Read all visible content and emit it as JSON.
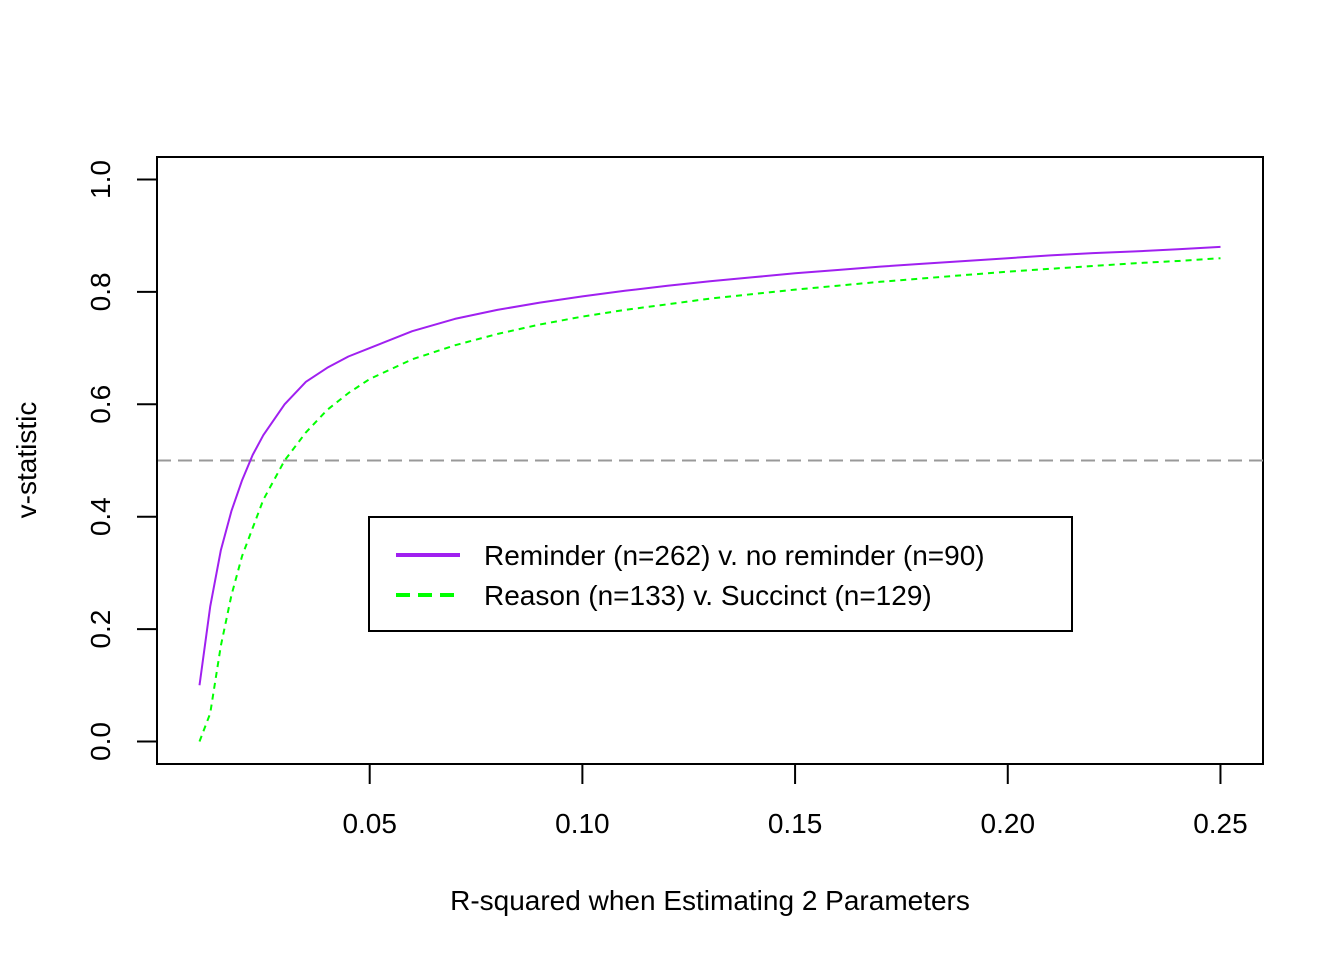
{
  "chart_data": {
    "type": "line",
    "title": "",
    "xlabel": "R-squared when Estimating 2 Parameters",
    "ylabel": "v-statistic",
    "xlim": [
      0,
      0.26
    ],
    "ylim": [
      -0.04,
      1.04
    ],
    "x_ticks": [
      0.05,
      0.1,
      0.15,
      0.2,
      0.25
    ],
    "x_tick_labels": [
      "0.05",
      "0.10",
      "0.15",
      "0.20",
      "0.25"
    ],
    "y_ticks": [
      0.0,
      0.2,
      0.4,
      0.6,
      0.8,
      1.0
    ],
    "y_tick_labels": [
      "0.0",
      "0.2",
      "0.4",
      "0.6",
      "0.8",
      "1.0"
    ],
    "grid": false,
    "legend_position": "center",
    "reference_line": {
      "y": 0.5,
      "color": "#999999",
      "style": "dashed"
    },
    "x": [
      0.01,
      0.0125,
      0.015,
      0.0175,
      0.02,
      0.0225,
      0.025,
      0.03,
      0.035,
      0.04,
      0.045,
      0.05,
      0.06,
      0.07,
      0.08,
      0.09,
      0.1,
      0.11,
      0.12,
      0.13,
      0.14,
      0.15,
      0.16,
      0.17,
      0.18,
      0.19,
      0.2,
      0.21,
      0.22,
      0.23,
      0.24,
      0.25
    ],
    "series": [
      {
        "name": "Reminder (n=262) v. no reminder (n=90)",
        "color": "#A020F0",
        "style": "solid",
        "values": [
          0.1,
          0.24,
          0.34,
          0.41,
          0.465,
          0.51,
          0.545,
          0.6,
          0.64,
          0.665,
          0.685,
          0.7,
          0.73,
          0.752,
          0.768,
          0.781,
          0.792,
          0.802,
          0.811,
          0.819,
          0.826,
          0.833,
          0.839,
          0.845,
          0.85,
          0.855,
          0.86,
          0.865,
          0.869,
          0.872,
          0.876,
          0.88
        ]
      },
      {
        "name": "Reason (n=133) v. Succinct (n=129)",
        "color": "#00FF00",
        "style": "dashed",
        "values": [
          0.0,
          0.05,
          0.17,
          0.26,
          0.33,
          0.38,
          0.43,
          0.5,
          0.55,
          0.59,
          0.62,
          0.645,
          0.68,
          0.705,
          0.725,
          0.742,
          0.756,
          0.768,
          0.778,
          0.788,
          0.796,
          0.804,
          0.811,
          0.818,
          0.824,
          0.83,
          0.836,
          0.841,
          0.846,
          0.851,
          0.855,
          0.86
        ]
      }
    ]
  }
}
